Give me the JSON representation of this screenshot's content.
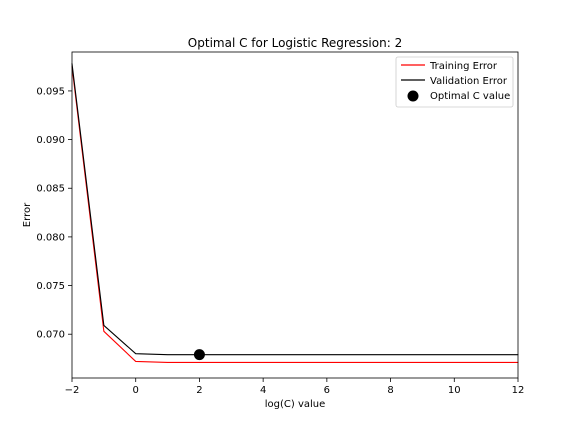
{
  "chart_data": {
    "type": "line",
    "title": "Optimal C for Logistic Regression: 2",
    "xlabel": "log(C) value",
    "ylabel": "Error",
    "xlim": [
      -2,
      12
    ],
    "ylim": [
      0.0655,
      0.099
    ],
    "x_ticks": [
      -2,
      0,
      2,
      4,
      6,
      8,
      10,
      12
    ],
    "x_tick_labels": [
      "−2",
      "0",
      "2",
      "4",
      "6",
      "8",
      "10",
      "12"
    ],
    "y_ticks": [
      0.07,
      0.075,
      0.08,
      0.085,
      0.09,
      0.095
    ],
    "y_tick_labels": [
      "0.070",
      "0.075",
      "0.080",
      "0.085",
      "0.090",
      "0.095"
    ],
    "grid": false,
    "legend_position": "top-right",
    "series": [
      {
        "name": "Training Error",
        "type": "line",
        "color": "#ff0000",
        "x": [
          -2,
          -1,
          0,
          1,
          2,
          3,
          4,
          5,
          6,
          7,
          8,
          9,
          10,
          11,
          12
        ],
        "y": [
          0.0975,
          0.0703,
          0.0672,
          0.0671,
          0.0671,
          0.0671,
          0.0671,
          0.0671,
          0.0671,
          0.0671,
          0.0671,
          0.0671,
          0.0671,
          0.0671,
          0.0671
        ]
      },
      {
        "name": "Validation Error",
        "type": "line",
        "color": "#000000",
        "x": [
          -2,
          -1,
          0,
          1,
          2,
          3,
          4,
          5,
          6,
          7,
          8,
          9,
          10,
          11,
          12
        ],
        "y": [
          0.0978,
          0.0709,
          0.068,
          0.0679,
          0.0679,
          0.0679,
          0.0679,
          0.0679,
          0.0679,
          0.0679,
          0.0679,
          0.0679,
          0.0679,
          0.0679,
          0.0679
        ]
      },
      {
        "name": "Optimal C value",
        "type": "scatter",
        "color": "#000000",
        "x": [
          2
        ],
        "y": [
          0.0679
        ]
      }
    ]
  }
}
